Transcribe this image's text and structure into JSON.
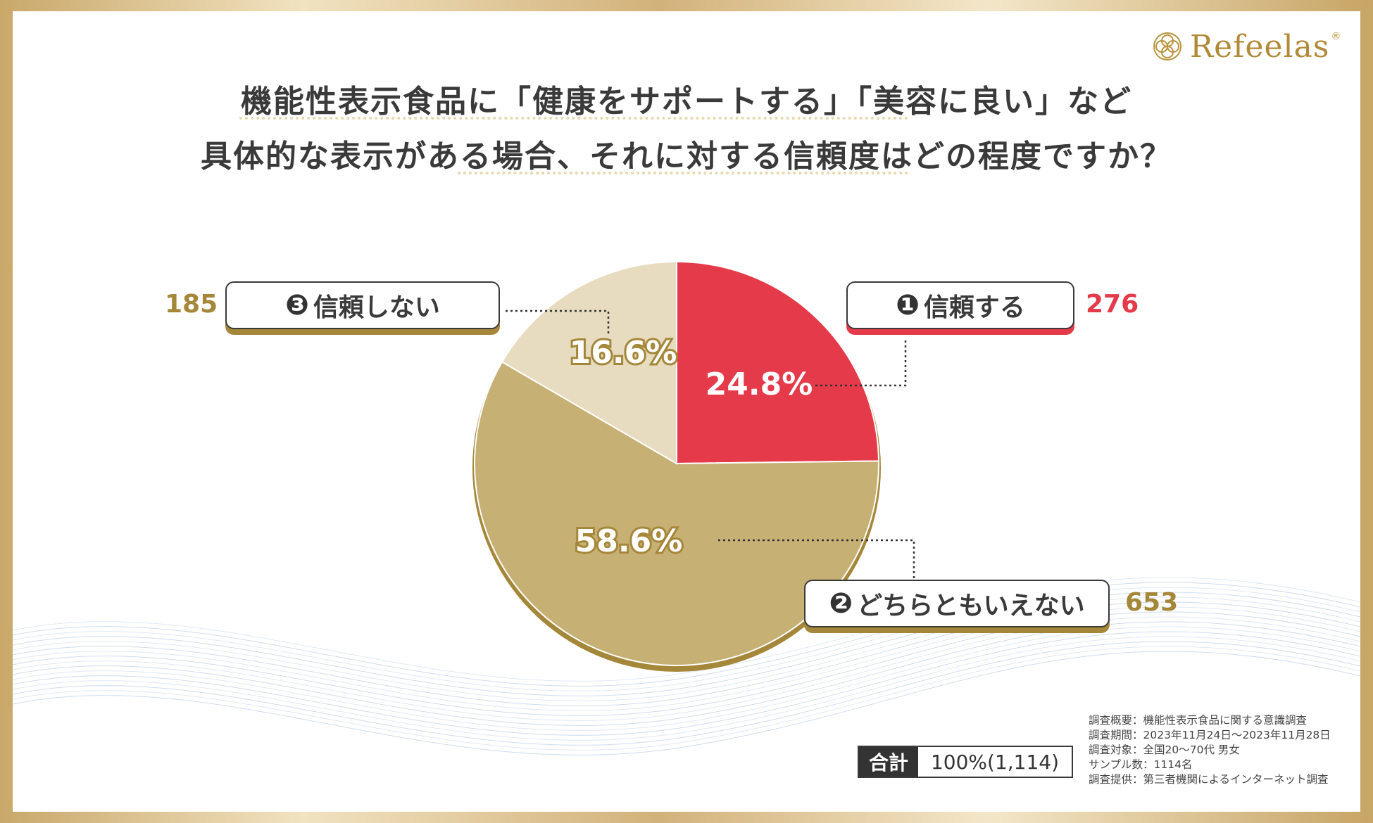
{
  "brand": {
    "name": "Refeelas",
    "mark": "®"
  },
  "title": {
    "line1": "機能性表示食品に「健康をサポートする」「美容に良い」など",
    "line2": "具体的な表示がある場合、それに対する信頼度はどの程度ですか？"
  },
  "colors": {
    "trust": "#e43a4a",
    "neutral": "#c6b074",
    "distrust": "#e7dcbf",
    "gold": "#a5873a",
    "outline": "#a5873a"
  },
  "chart_data": {
    "type": "pie",
    "start": "12 o'clock",
    "direction": "clockwise",
    "slices": [
      {
        "marker": "❶",
        "label": "信頼する",
        "percent": 24.8,
        "percent_label": "24.8%",
        "count": 276,
        "color": "#e43a4a"
      },
      {
        "marker": "❷",
        "label": "どちらともいえない",
        "percent": 58.6,
        "percent_label": "58.6%",
        "count": 653,
        "color": "#c6b074"
      },
      {
        "marker": "❸",
        "label": "信頼しない",
        "percent": 16.6,
        "percent_label": "16.6%",
        "count": 185,
        "color": "#e7dcbf"
      }
    ],
    "total": {
      "label": "合計",
      "value": "100%(1,114)"
    }
  },
  "notes": [
    "調査概要：機能性表示食品に関する意識調査",
    "調査期間：2023年11月24日～2023年11月28日",
    "調査対象：全国20～70代 男女",
    "サンプル数：1114名",
    "調査提供：第三者機関によるインターネット調査"
  ]
}
